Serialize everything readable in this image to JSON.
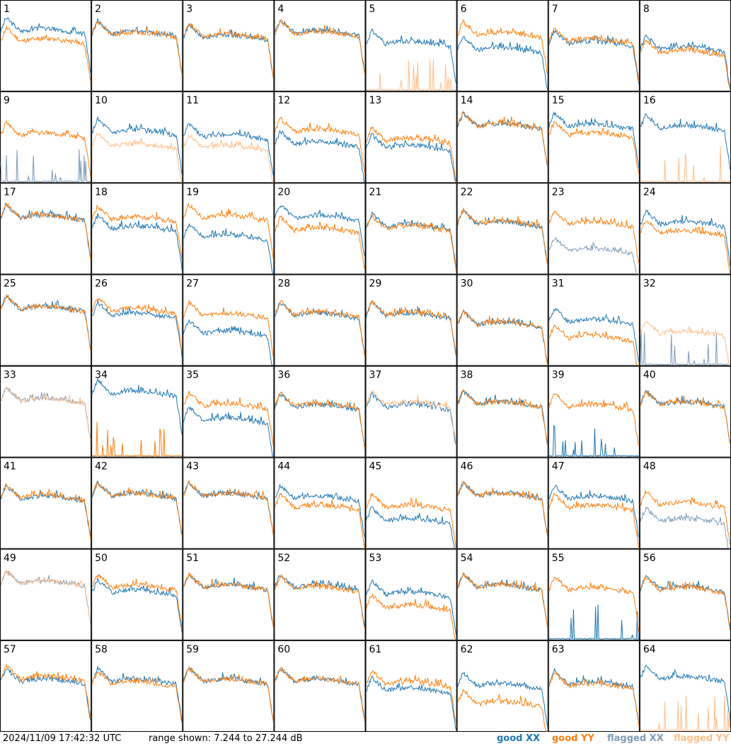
{
  "footer": {
    "timestamp": "2024/11/09 17:42:32 UTC",
    "range_text": "range shown: 7.244 to 27.244 dB"
  },
  "legend": [
    {
      "label": "good XX",
      "color": "#1f77b4"
    },
    {
      "label": "good YY",
      "color": "#ff7f0e"
    },
    {
      "label": "flagged XX",
      "color": "#7f9cb8"
    },
    {
      "label": "flagged YY",
      "color": "#ffbe8a"
    }
  ],
  "chart_data": {
    "type": "line",
    "layout": "8x8 small multiples",
    "value_range_db": [
      7.244,
      27.244
    ],
    "grid": false,
    "series_names": [
      "good XX",
      "good YY",
      "flagged XX",
      "flagged YY"
    ],
    "panels": [
      {
        "label": "1",
        "xx": "good",
        "yy": "good",
        "xx_level": 0.66,
        "yy_level": 0.55,
        "note": "yy dip"
      },
      {
        "label": "2",
        "xx": "good",
        "yy": "good",
        "xx_level": 0.63,
        "yy_level": 0.62
      },
      {
        "label": "3",
        "xx": "good",
        "yy": "good",
        "xx_level": 0.59,
        "yy_level": 0.6
      },
      {
        "label": "4",
        "xx": "good",
        "yy": "good",
        "xx_level": 0.64,
        "yy_level": 0.63
      },
      {
        "label": "5",
        "xx": "good",
        "yy": "flagged",
        "xx_level": 0.52,
        "yy_level": 0.03,
        "note": "yy spiky low"
      },
      {
        "label": "6",
        "xx": "good",
        "yy": "good",
        "xx_level": 0.45,
        "yy_level": 0.62
      },
      {
        "label": "7",
        "xx": "good",
        "yy": "good",
        "xx_level": 0.52,
        "yy_level": 0.55
      },
      {
        "label": "8",
        "xx": "good",
        "yy": "good",
        "xx_level": 0.46,
        "yy_level": 0.42
      },
      {
        "label": "9",
        "xx": "flagged",
        "yy": "good",
        "xx_level": 0.03,
        "yy_level": 0.52,
        "note": "xx spiky low"
      },
      {
        "label": "10",
        "xx": "good",
        "yy": "flagged",
        "xx_level": 0.55,
        "yy_level": 0.4
      },
      {
        "label": "11",
        "xx": "good",
        "yy": "flagged",
        "xx_level": 0.5,
        "yy_level": 0.38
      },
      {
        "label": "12",
        "xx": "good",
        "yy": "good",
        "xx_level": 0.42,
        "yy_level": 0.56
      },
      {
        "label": "13",
        "xx": "good",
        "yy": "good",
        "xx_level": 0.38,
        "yy_level": 0.46
      },
      {
        "label": "14",
        "xx": "good",
        "yy": "good",
        "xx_level": 0.62,
        "yy_level": 0.62
      },
      {
        "label": "15",
        "xx": "good",
        "yy": "good",
        "xx_level": 0.62,
        "yy_level": 0.52
      },
      {
        "label": "16",
        "xx": "good",
        "yy": "flagged",
        "xx_level": 0.6,
        "yy_level": 0.03,
        "note": "yy spiky low"
      },
      {
        "label": "17",
        "xx": "good",
        "yy": "good",
        "xx_level": 0.62,
        "yy_level": 0.62
      },
      {
        "label": "18",
        "xx": "good",
        "yy": "good",
        "xx_level": 0.5,
        "yy_level": 0.6
      },
      {
        "label": "19",
        "xx": "good",
        "yy": "good",
        "xx_level": 0.4,
        "yy_level": 0.62
      },
      {
        "label": "20",
        "xx": "good",
        "yy": "good",
        "xx_level": 0.62,
        "yy_level": 0.48
      },
      {
        "label": "21",
        "xx": "good",
        "yy": "good",
        "xx_level": 0.52,
        "yy_level": 0.5
      },
      {
        "label": "22",
        "xx": "good",
        "yy": "good",
        "xx_level": 0.55,
        "yy_level": 0.56
      },
      {
        "label": "23",
        "xx": "flagged",
        "yy": "good",
        "xx_level": 0.25,
        "yy_level": 0.55,
        "note": "xx noisy"
      },
      {
        "label": "24",
        "xx": "good",
        "yy": "good",
        "xx_level": 0.55,
        "yy_level": 0.45
      },
      {
        "label": "25",
        "xx": "good",
        "yy": "good",
        "xx_level": 0.62,
        "yy_level": 0.62
      },
      {
        "label": "26",
        "xx": "good",
        "yy": "good",
        "xx_level": 0.55,
        "yy_level": 0.6
      },
      {
        "label": "27",
        "xx": "good",
        "yy": "good",
        "xx_level": 0.35,
        "yy_level": 0.55
      },
      {
        "label": "28",
        "xx": "good",
        "yy": "good",
        "xx_level": 0.55,
        "yy_level": 0.56
      },
      {
        "label": "29",
        "xx": "good",
        "yy": "good",
        "xx_level": 0.55,
        "yy_level": 0.56
      },
      {
        "label": "30",
        "xx": "good",
        "yy": "good",
        "xx_level": 0.45,
        "yy_level": 0.45
      },
      {
        "label": "31",
        "xx": "good",
        "yy": "good",
        "xx_level": 0.48,
        "yy_level": 0.3
      },
      {
        "label": "32",
        "xx": "flagged",
        "yy": "flagged",
        "xx_level": 0.03,
        "yy_level": 0.35
      },
      {
        "label": "33",
        "xx": "flagged",
        "yy": "flagged",
        "xx_level": 0.62,
        "yy_level": 0.62
      },
      {
        "label": "34",
        "xx": "good",
        "yy": "good",
        "xx_level": 0.7,
        "yy_level": 0.05,
        "note": "yy spiky low"
      },
      {
        "label": "35",
        "xx": "good",
        "yy": "good",
        "xx_level": 0.4,
        "yy_level": 0.56
      },
      {
        "label": "36",
        "xx": "good",
        "yy": "good",
        "xx_level": 0.55,
        "yy_level": 0.56
      },
      {
        "label": "37",
        "xx": "good",
        "yy": "flagged",
        "xx_level": 0.55,
        "yy_level": 0.58
      },
      {
        "label": "38",
        "xx": "good",
        "yy": "good",
        "xx_level": 0.58,
        "yy_level": 0.58
      },
      {
        "label": "39",
        "xx": "good",
        "yy": "good",
        "xx_level": 0.03,
        "yy_level": 0.55,
        "note": "xx spiky low"
      },
      {
        "label": "40",
        "xx": "good",
        "yy": "good",
        "xx_level": 0.58,
        "yy_level": 0.58
      },
      {
        "label": "41",
        "xx": "good",
        "yy": "good",
        "xx_level": 0.55,
        "yy_level": 0.56
      },
      {
        "label": "42",
        "xx": "good",
        "yy": "good",
        "xx_level": 0.58,
        "yy_level": 0.58
      },
      {
        "label": "43",
        "xx": "good",
        "yy": "good",
        "xx_level": 0.58,
        "yy_level": 0.58
      },
      {
        "label": "44",
        "xx": "good",
        "yy": "good",
        "xx_level": 0.55,
        "yy_level": 0.45
      },
      {
        "label": "45",
        "xx": "good",
        "yy": "good",
        "xx_level": 0.3,
        "yy_level": 0.45
      },
      {
        "label": "46",
        "xx": "good",
        "yy": "good",
        "xx_level": 0.58,
        "yy_level": 0.58
      },
      {
        "label": "47",
        "xx": "good",
        "yy": "good",
        "xx_level": 0.55,
        "yy_level": 0.45
      },
      {
        "label": "48",
        "xx": "flagged",
        "yy": "good",
        "xx_level": 0.3,
        "yy_level": 0.48
      },
      {
        "label": "49",
        "xx": "flagged",
        "yy": "flagged",
        "xx_level": 0.62,
        "yy_level": 0.62
      },
      {
        "label": "50",
        "xx": "good",
        "yy": "good",
        "xx_level": 0.52,
        "yy_level": 0.58
      },
      {
        "label": "51",
        "xx": "good",
        "yy": "good",
        "xx_level": 0.58,
        "yy_level": 0.58
      },
      {
        "label": "52",
        "xx": "good",
        "yy": "good",
        "xx_level": 0.58,
        "yy_level": 0.56
      },
      {
        "label": "53",
        "xx": "good",
        "yy": "good",
        "xx_level": 0.5,
        "yy_level": 0.35
      },
      {
        "label": "54",
        "xx": "good",
        "yy": "good",
        "xx_level": 0.58,
        "yy_level": 0.58
      },
      {
        "label": "55",
        "xx": "good",
        "yy": "good",
        "xx_level": 0.03,
        "yy_level": 0.55,
        "note": "xx spiky low"
      },
      {
        "label": "56",
        "xx": "good",
        "yy": "good",
        "xx_level": 0.56,
        "yy_level": 0.55
      },
      {
        "label": "57",
        "xx": "good",
        "yy": "good",
        "xx_level": 0.55,
        "yy_level": 0.58
      },
      {
        "label": "58",
        "xx": "good",
        "yy": "good",
        "xx_level": 0.55,
        "yy_level": 0.52
      },
      {
        "label": "59",
        "xx": "good",
        "yy": "good",
        "xx_level": 0.55,
        "yy_level": 0.55
      },
      {
        "label": "60",
        "xx": "good",
        "yy": "good",
        "xx_level": 0.55,
        "yy_level": 0.55
      },
      {
        "label": "61",
        "xx": "good",
        "yy": "good",
        "xx_level": 0.45,
        "yy_level": 0.52
      },
      {
        "label": "62",
        "xx": "good",
        "yy": "good",
        "xx_level": 0.5,
        "yy_level": 0.3
      },
      {
        "label": "63",
        "xx": "good",
        "yy": "good",
        "xx_level": 0.52,
        "yy_level": 0.5
      },
      {
        "label": "64",
        "xx": "good",
        "yy": "flagged",
        "xx_level": 0.58,
        "yy_level": 0.03,
        "note": "yy spiky low"
      }
    ]
  }
}
